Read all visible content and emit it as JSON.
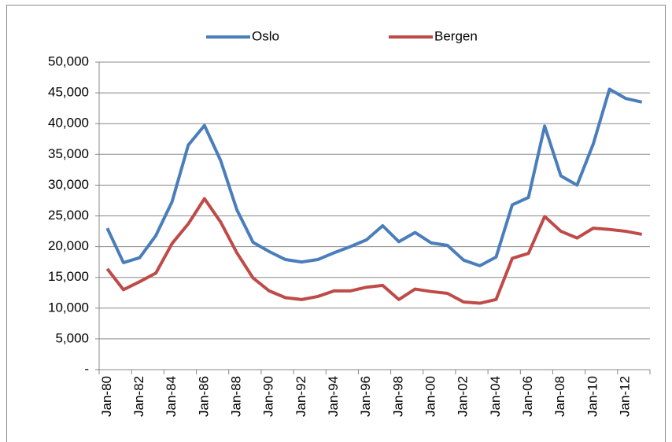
{
  "chart_data": {
    "type": "line",
    "categories": [
      "Jan-80",
      null,
      "Jan-82",
      null,
      "Jan-84",
      null,
      "Jan-86",
      null,
      "Jan-88",
      null,
      "Jan-90",
      null,
      "Jan-92",
      null,
      "Jan-94",
      null,
      "Jan-96",
      null,
      "Jan-98",
      null,
      "Jan-00",
      null,
      "Jan-02",
      null,
      "Jan-04",
      null,
      "Jan-06",
      null,
      "Jan-08",
      null,
      "Jan-10",
      null,
      "Jan-12",
      null
    ],
    "series": [
      {
        "name": "Oslo",
        "color": "#4a7ebb",
        "values": [
          23000,
          17400,
          18200,
          21800,
          27300,
          36500,
          39700,
          34000,
          26000,
          20700,
          19200,
          17900,
          17500,
          17900,
          19000,
          20000,
          21100,
          23400,
          20800,
          22300,
          20600,
          20200,
          17800,
          16900,
          18300,
          26800,
          28000,
          39600,
          31500,
          30000,
          36700,
          45600,
          44100,
          43500
        ]
      },
      {
        "name": "Bergen",
        "color": "#be4b48",
        "values": [
          16400,
          13000,
          14300,
          15700,
          20500,
          23700,
          27800,
          24000,
          19000,
          14900,
          12800,
          11700,
          11400,
          11900,
          12800,
          12800,
          13400,
          13700,
          11400,
          13100,
          12700,
          12400,
          11000,
          10800,
          11400,
          18100,
          18900,
          24900,
          22500,
          21400,
          23000,
          22800,
          22500,
          22000
        ]
      }
    ],
    "ylim": [
      0,
      50000
    ],
    "yticks": [
      {
        "value": 0,
        "label": "-"
      },
      {
        "value": 5000,
        "label": "5,000"
      },
      {
        "value": 10000,
        "label": "10,000"
      },
      {
        "value": 15000,
        "label": "15,000"
      },
      {
        "value": 20000,
        "label": "20,000"
      },
      {
        "value": 25000,
        "label": "25,000"
      },
      {
        "value": 30000,
        "label": "30,000"
      },
      {
        "value": 35000,
        "label": "35,000"
      },
      {
        "value": 40000,
        "label": "40,000"
      },
      {
        "value": 45000,
        "label": "45,000"
      },
      {
        "value": 50000,
        "label": "50,000"
      }
    ],
    "grid": true,
    "legend": "top"
  }
}
